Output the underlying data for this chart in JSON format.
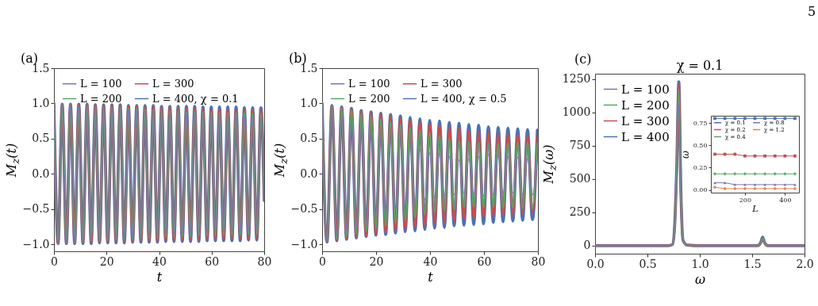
{
  "chart_data": [
    {
      "type": "line",
      "xlabel": "t",
      "ylabel": "M$_{z}$(t)",
      "annotations": [
        "(a)"
      ],
      "legend": "top left",
      "xlim": [
        0,
        80
      ],
      "ylim": [
        -1.1,
        1.5
      ],
      "xticks": [
        0,
        20,
        40,
        60,
        80
      ],
      "yticks": [
        {
          "value": -1,
          "label": "−1.0"
        },
        {
          "value": -0.5,
          "label": "−0.5"
        },
        {
          "value": 0,
          "label": "0.0"
        },
        {
          "value": 0.5,
          "label": "0.5"
        },
        {
          "value": 1,
          "label": "1.0"
        },
        {
          "value": 1.5,
          "label": "1.5"
        }
      ],
      "x": [
        0,
        1.58,
        3.15,
        4.73,
        6.3,
        7.88,
        9.45,
        11.03,
        12.6,
        14.18,
        15.75,
        17.33,
        18.9,
        20.48,
        22.05,
        23.63,
        25.2,
        26.78,
        28.35,
        29.93,
        31.5,
        33.08,
        34.65,
        36.23,
        37.8,
        39.38,
        40.95,
        42.53,
        44.1,
        45.68,
        47.25,
        48.83,
        50.4,
        51.98,
        53.55,
        55.13,
        56.7,
        58.28,
        59.85,
        61.43,
        63,
        64.58,
        66.15,
        67.73,
        69.3,
        70.88,
        72.45,
        74.03,
        75.6,
        77.18,
        78.75,
        80
      ],
      "series": [
        {
          "name": "L = 100",
          "color": "#8172b2",
          "values": [
            1,
            -0.99,
            0.99,
            -0.98,
            0.98,
            -0.98,
            0.97,
            -0.96,
            0.96,
            -0.95,
            0.95,
            -0.94,
            0.94,
            -0.93,
            0.93,
            -0.92,
            0.92,
            -0.91,
            0.91,
            -0.9,
            0.9,
            -0.89,
            0.89,
            -0.88,
            0.88,
            -0.87,
            0.87,
            -0.86,
            0.86,
            -0.86,
            0.86,
            -0.85,
            0.85,
            -0.85,
            0.85,
            -0.84,
            0.84,
            -0.84,
            0.83,
            -0.83,
            0.83,
            -0.83,
            0.82,
            -0.82,
            0.82,
            -0.82,
            0.81,
            -0.81,
            0.81,
            -0.8,
            0.8,
            -0.38
          ]
        },
        {
          "name": "L = 200",
          "color": "#55a868",
          "values": [
            1,
            -0.99,
            0.99,
            -0.98,
            0.98,
            -0.98,
            0.97,
            -0.97,
            0.97,
            -0.96,
            0.96,
            -0.96,
            0.95,
            -0.95,
            0.95,
            -0.94,
            0.94,
            -0.94,
            0.93,
            -0.93,
            0.93,
            -0.92,
            0.92,
            -0.92,
            0.91,
            -0.91,
            0.91,
            -0.9,
            0.9,
            -0.9,
            0.9,
            -0.89,
            0.89,
            -0.89,
            0.89,
            -0.88,
            0.88,
            -0.88,
            0.88,
            -0.88,
            0.88,
            -0.87,
            0.87,
            -0.87,
            0.87,
            -0.87,
            0.87,
            -0.86,
            0.86,
            -0.86,
            0.86,
            -0.38
          ]
        },
        {
          "name": "L = 300",
          "color": "#c44e52",
          "values": [
            1,
            -0.99,
            0.99,
            -0.99,
            0.99,
            -0.99,
            0.99,
            -0.98,
            0.98,
            -0.98,
            0.98,
            -0.97,
            0.97,
            -0.97,
            0.97,
            -0.96,
            0.96,
            -0.96,
            0.96,
            -0.96,
            0.96,
            -0.95,
            0.95,
            -0.95,
            0.95,
            -0.95,
            0.94,
            -0.94,
            0.94,
            -0.94,
            0.94,
            -0.93,
            0.93,
            -0.93,
            0.93,
            -0.93,
            0.92,
            -0.92,
            0.92,
            -0.92,
            0.92,
            -0.92,
            0.92,
            -0.91,
            0.91,
            -0.91,
            0.91,
            -0.91,
            0.91,
            -0.91,
            0.91,
            -0.38
          ]
        },
        {
          "name": "L = 400, χ = 0.1",
          "color": "#4c72b0",
          "values": [
            1,
            -0.99,
            0.99,
            -0.99,
            0.99,
            -0.99,
            0.99,
            -0.99,
            0.99,
            -0.99,
            0.98,
            -0.98,
            0.98,
            -0.98,
            0.98,
            -0.98,
            0.98,
            -0.98,
            0.97,
            -0.97,
            0.97,
            -0.97,
            0.97,
            -0.97,
            0.97,
            -0.97,
            0.96,
            -0.96,
            0.96,
            -0.96,
            0.96,
            -0.96,
            0.96,
            -0.96,
            0.96,
            -0.96,
            0.95,
            -0.95,
            0.95,
            -0.95,
            0.95,
            -0.95,
            0.95,
            -0.95,
            0.95,
            -0.95,
            0.94,
            -0.94,
            0.94,
            -0.94,
            0.94,
            -0.38
          ]
        }
      ]
    },
    {
      "type": "line",
      "xlabel": "t",
      "ylabel": "M$_{z}$(t)",
      "annotations": [
        "(b)"
      ],
      "legend": "top left",
      "xlim": [
        0,
        80
      ],
      "ylim": [
        -1.1,
        1.5
      ],
      "xticks": [
        0,
        20,
        40,
        60,
        80
      ],
      "yticks": [
        {
          "value": -1,
          "label": "−1.0"
        },
        {
          "value": -0.5,
          "label": "−0.5"
        },
        {
          "value": 0,
          "label": "0.0"
        },
        {
          "value": 0.5,
          "label": "0.5"
        },
        {
          "value": 1,
          "label": "1.0"
        },
        {
          "value": 1.5,
          "label": "1.5"
        }
      ],
      "x": [
        0,
        1.81,
        3.63,
        5.44,
        7.25,
        9.07,
        10.88,
        12.69,
        14.5,
        16.32,
        18.13,
        19.94,
        21.76,
        23.57,
        25.38,
        27.2,
        29.01,
        30.82,
        32.63,
        34.45,
        36.26,
        38.07,
        39.89,
        41.7,
        43.51,
        45.33,
        47.14,
        48.95,
        50.76,
        52.58,
        54.39,
        56.2,
        58.02,
        59.83,
        61.64,
        63.45,
        65.27,
        67.08,
        68.89,
        70.71,
        72.52,
        74.33,
        76.15,
        77.96,
        79.77
      ],
      "series": [
        {
          "name": "L = 100",
          "color": "#8172b2",
          "values": [
            1,
            -0.97,
            0.93,
            -0.88,
            0.82,
            -0.8,
            0.72,
            -0.75,
            0.66,
            -0.7,
            0.6,
            -0.62,
            0.54,
            -0.57,
            0.47,
            -0.52,
            0.43,
            -0.45,
            0.4,
            -0.42,
            0.35,
            -0.38,
            0.3,
            -0.35,
            0.3,
            -0.32,
            0.25,
            -0.3,
            0.2,
            -0.28,
            0.22,
            -0.3,
            0.25,
            -0.32,
            0.28,
            -0.3,
            0.27,
            -0.28,
            0.25,
            -0.28,
            0.24,
            -0.3,
            0.22,
            -0.3,
            0.2
          ]
        },
        {
          "name": "L = 200",
          "color": "#55a868",
          "values": [
            1,
            -0.97,
            0.96,
            -0.93,
            0.93,
            -0.9,
            0.9,
            -0.86,
            0.86,
            -0.82,
            0.82,
            -0.78,
            0.78,
            -0.74,
            0.74,
            -0.7,
            0.7,
            -0.66,
            0.66,
            -0.62,
            0.62,
            -0.58,
            0.58,
            -0.55,
            0.54,
            -0.52,
            0.5,
            -0.5,
            0.47,
            -0.48,
            0.45,
            -0.47,
            0.44,
            -0.47,
            0.43,
            -0.47,
            0.43,
            -0.48,
            0.43,
            -0.48,
            0.44,
            -0.49,
            0.44,
            -0.49,
            0.44
          ]
        },
        {
          "name": "L = 300",
          "color": "#c44e52",
          "values": [
            1,
            -0.97,
            0.97,
            -0.94,
            0.94,
            -0.92,
            0.92,
            -0.9,
            0.89,
            -0.88,
            0.86,
            -0.85,
            0.84,
            -0.83,
            0.81,
            -0.8,
            0.79,
            -0.78,
            0.76,
            -0.75,
            0.73,
            -0.73,
            0.71,
            -0.7,
            0.68,
            -0.68,
            0.66,
            -0.66,
            0.64,
            -0.64,
            0.61,
            -0.62,
            0.59,
            -0.6,
            0.58,
            -0.59,
            0.56,
            -0.58,
            0.55,
            -0.57,
            0.55,
            -0.56,
            0.54,
            -0.55,
            0.53
          ]
        },
        {
          "name": "L = 400, χ = 0.5",
          "color": "#4c72b0",
          "values": [
            1,
            -0.97,
            0.97,
            -0.95,
            0.95,
            -0.93,
            0.93,
            -0.91,
            0.9,
            -0.89,
            0.88,
            -0.87,
            0.86,
            -0.86,
            0.84,
            -0.84,
            0.82,
            -0.82,
            0.8,
            -0.81,
            0.78,
            -0.79,
            0.76,
            -0.77,
            0.75,
            -0.76,
            0.73,
            -0.74,
            0.72,
            -0.73,
            0.7,
            -0.72,
            0.69,
            -0.71,
            0.67,
            -0.69,
            0.66,
            -0.68,
            0.65,
            -0.67,
            0.64,
            -0.66,
            0.63,
            -0.65,
            0.62
          ]
        }
      ]
    },
    {
      "type": "line",
      "title": "χ = 0.1",
      "xlabel": "ω",
      "ylabel": "M$_{z}$(ω)",
      "annotations": [
        "(c)",
        "5"
      ],
      "legend": "top left",
      "xlim": [
        0,
        2
      ],
      "ylim": [
        -60,
        1290
      ],
      "xticks": [
        {
          "value": 0,
          "label": "0.0"
        },
        {
          "value": 0.5,
          "label": "0.5"
        },
        {
          "value": 1,
          "label": "1.0"
        },
        {
          "value": 1.5,
          "label": "1.5"
        },
        {
          "value": 2,
          "label": "2.0"
        }
      ],
      "yticks": [
        0,
        250,
        500,
        750,
        1000,
        1250
      ],
      "x": [
        0,
        0.7,
        0.74,
        0.76,
        0.78,
        0.8,
        0.82,
        0.84,
        0.88,
        1.0,
        1.55,
        1.58,
        1.6,
        1.62,
        1.65,
        2.0
      ],
      "series": [
        {
          "name": "L = 100",
          "color": "#8172b2",
          "values": [
            0,
            0,
            10,
            120,
            500,
            1060,
            350,
            35,
            5,
            0,
            0,
            14,
            45,
            14,
            0,
            0
          ]
        },
        {
          "name": "L = 200",
          "color": "#55a868",
          "values": [
            0,
            0,
            10,
            130,
            560,
            1170,
            380,
            38,
            5,
            0,
            0,
            16,
            55,
            16,
            0,
            0
          ]
        },
        {
          "name": "L = 300",
          "color": "#c44e52",
          "values": [
            0,
            0,
            10,
            140,
            580,
            1210,
            390,
            40,
            5,
            0,
            0,
            18,
            60,
            18,
            0,
            0
          ]
        },
        {
          "name": "L = 400",
          "color": "#4c72b0",
          "values": [
            0,
            0,
            10,
            150,
            600,
            1230,
            400,
            40,
            5,
            0,
            0,
            20,
            65,
            20,
            0,
            0
          ]
        }
      ]
    },
    {
      "type": "line",
      "xlabel": "L",
      "ylabel": "ω",
      "legend": "top left",
      "xlim": [
        30,
        470
      ],
      "ylim": [
        -0.03,
        0.83
      ],
      "xticks": [
        200,
        400
      ],
      "yticks": [
        {
          "value": 0,
          "label": "0.00"
        },
        {
          "value": 0.25,
          "label": "0.25"
        },
        {
          "value": 0.5,
          "label": "0.50"
        },
        {
          "value": 0.75,
          "label": "0.75"
        }
      ],
      "x": [
        50,
        100,
        150,
        200,
        250,
        300,
        350,
        400,
        450
      ],
      "series": [
        {
          "name": "χ = 0.1",
          "color": "#4c72b0",
          "marker": "square",
          "values": [
            0.8,
            0.8,
            0.8,
            0.8,
            0.8,
            0.8,
            0.8,
            0.8,
            0.8
          ]
        },
        {
          "name": "χ = 0.2",
          "color": "#c44e52",
          "marker": "square",
          "values": [
            0.4,
            0.4,
            0.4,
            0.38,
            0.38,
            0.38,
            0.38,
            0.38,
            0.38
          ]
        },
        {
          "name": "χ = 0.4",
          "color": "#55a868",
          "marker": "cross",
          "values": [
            0.18,
            0.18,
            0.18,
            0.18,
            0.18,
            0.18,
            0.18,
            0.18,
            0.18
          ]
        },
        {
          "name": "χ = 0.8",
          "color": "#8172b2",
          "marker": "triangle",
          "values": [
            0.08,
            0.08,
            0.06,
            0.06,
            0.06,
            0.06,
            0.06,
            0.06,
            0.06
          ]
        },
        {
          "name": "χ = 1.2",
          "color": "#dd8452",
          "marker": "cross",
          "values": [
            0.03,
            0.015,
            0.015,
            0.015,
            0.015,
            0.015,
            0.015,
            0.015,
            0.015
          ]
        }
      ]
    }
  ]
}
